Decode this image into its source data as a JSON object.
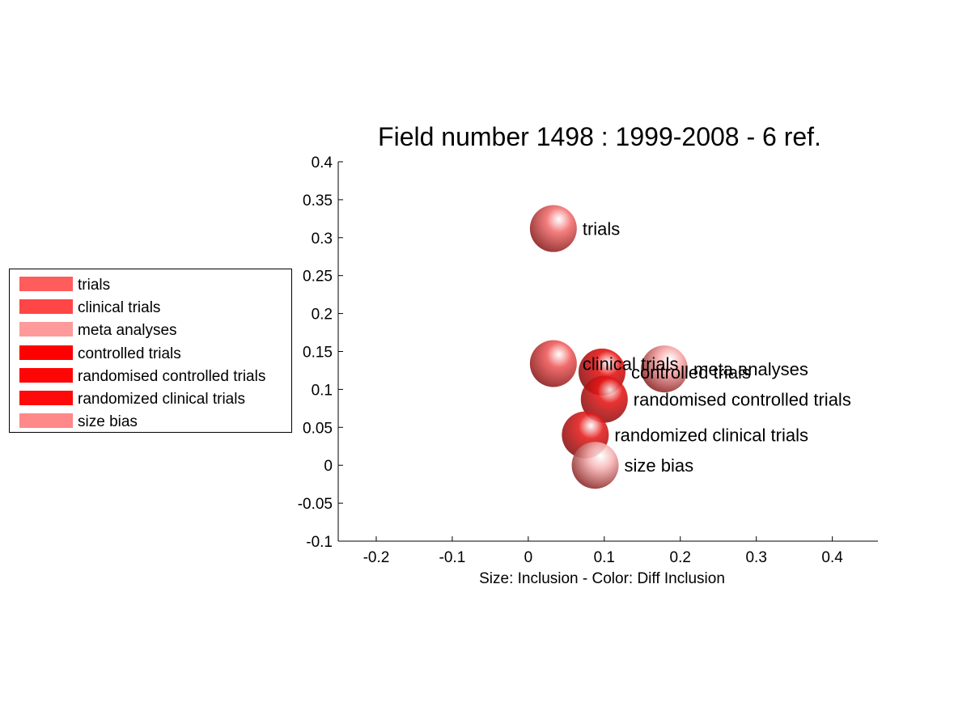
{
  "chart_data": {
    "type": "scatter",
    "title": "Field number 1498 : 1999-2008  - 6 ref.",
    "xlabel": "Size: Inclusion - Color: Diff Inclusion",
    "ylabel": "",
    "xlim": [
      -0.25,
      0.46
    ],
    "ylim": [
      -0.1,
      0.4
    ],
    "x_ticks": [
      "-0.2",
      "-0.1",
      "0",
      "0.1",
      "0.2",
      "0.3",
      "0.4"
    ],
    "y_ticks": [
      "-0.1",
      "-0.05",
      "0",
      "0.05",
      "0.1",
      "0.15",
      "0.2",
      "0.25",
      "0.3",
      "0.35",
      "0.4"
    ],
    "grid": false,
    "legend_position": "left",
    "points": [
      {
        "label": "trials",
        "x": 0.033,
        "y": 0.312,
        "color": "#f26d6d"
      },
      {
        "label": "clinical trials",
        "x": 0.033,
        "y": 0.134,
        "color": "#f05858"
      },
      {
        "label": "meta analyses",
        "x": 0.179,
        "y": 0.127,
        "color": "#f7a6a6"
      },
      {
        "label": "controlled trials",
        "x": 0.097,
        "y": 0.123,
        "color": "#e61010"
      },
      {
        "label": "randomised controlled trials",
        "x": 0.1,
        "y": 0.087,
        "color": "#e61616"
      },
      {
        "label": "randomized clinical trials",
        "x": 0.075,
        "y": 0.04,
        "color": "#e51a1a"
      },
      {
        "label": "size bias",
        "x": 0.088,
        "y": 0.0,
        "color": "#f6b2b2"
      }
    ],
    "legend": [
      {
        "label": "trials",
        "color": "#ff5c5c"
      },
      {
        "label": "clinical trials",
        "color": "#ff4646"
      },
      {
        "label": "meta analyses",
        "color": "#ff9a9a"
      },
      {
        "label": "controlled trials",
        "color": "#ff0000"
      },
      {
        "label": "randomised controlled trials",
        "color": "#ff0606"
      },
      {
        "label": "randomized clinical trials",
        "color": "#ff0a0a"
      },
      {
        "label": "size bias",
        "color": "#ff8888"
      }
    ]
  }
}
